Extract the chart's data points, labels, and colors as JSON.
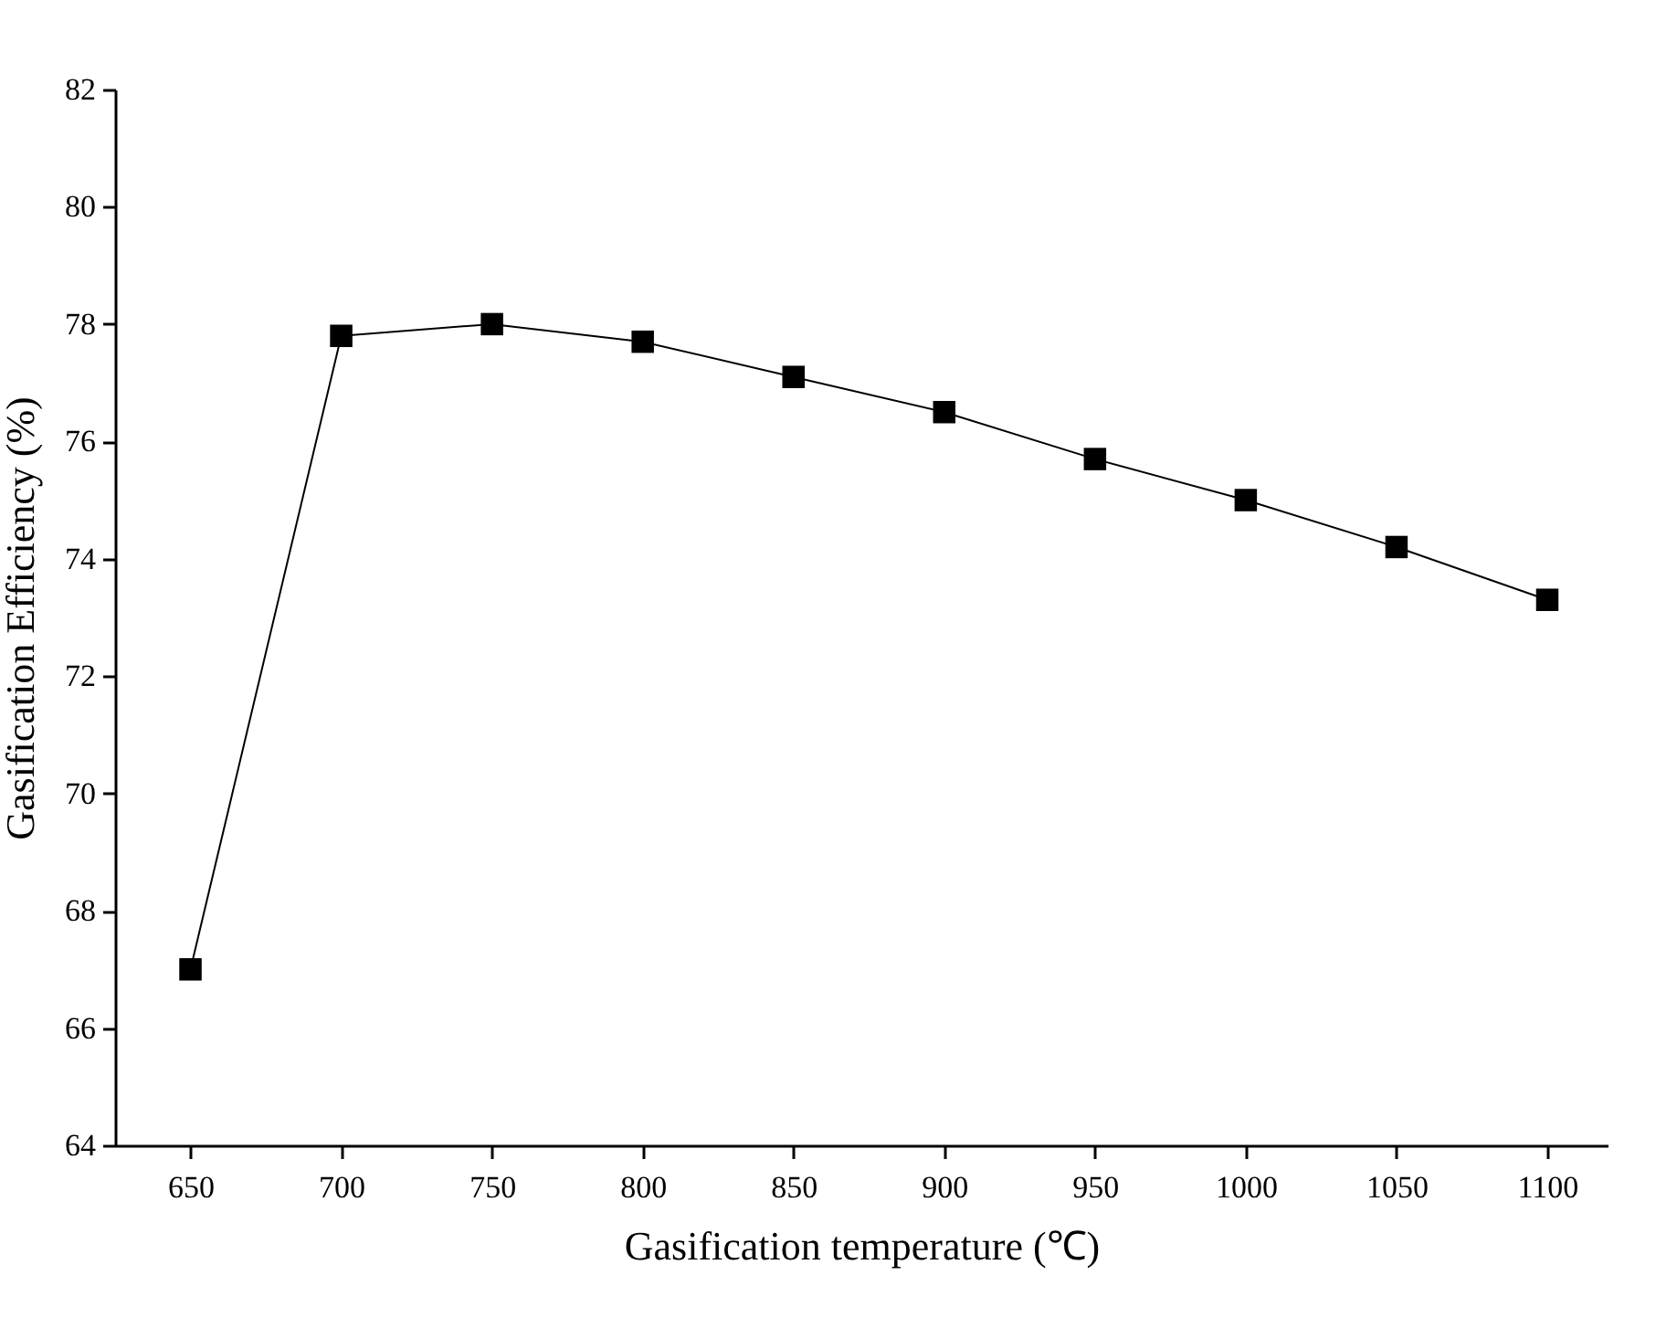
{
  "chart_data": {
    "type": "line",
    "xlabel": "Gasification temperature (℃)",
    "ylabel": "Gasification Efficiency (%)",
    "x": [
      650,
      700,
      750,
      800,
      850,
      900,
      950,
      1000,
      1050,
      1100
    ],
    "series": [
      {
        "color": "#000000",
        "values": [
          67.0,
          77.8,
          78.0,
          77.7,
          77.1,
          76.5,
          75.7,
          75.0,
          74.2,
          73.3
        ]
      }
    ],
    "xlim": [
      625,
      1120
    ],
    "xticks": [
      650,
      700,
      750,
      800,
      850,
      900,
      950,
      1000,
      1050,
      1100
    ],
    "ylim": [
      64,
      82
    ],
    "yticks": [
      64,
      66,
      68,
      70,
      72,
      74,
      76,
      78,
      80,
      82
    ],
    "grid": false,
    "marker": "square",
    "line_style": "solid"
  }
}
